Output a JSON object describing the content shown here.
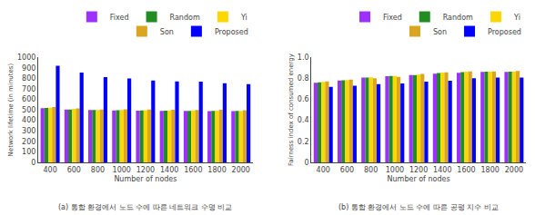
{
  "chart_data": [
    {
      "type": "bar",
      "title": "(a) 통합 환경에서 노드 수에 따른 네트워크 수명 비교",
      "xlabel": "Number of nodes",
      "ylabel": "Network lifetime (in minutes)",
      "categories": [
        400,
        600,
        800,
        1000,
        1200,
        1400,
        1600,
        1800,
        2000
      ],
      "series": [
        {
          "name": "Fixed",
          "color": "#9b30ff",
          "values": [
            515,
            502,
            499,
            494,
            493,
            491,
            490,
            487,
            487
          ]
        },
        {
          "name": "Random",
          "color": "#228B22",
          "values": [
            518,
            503,
            499,
            497,
            495,
            493,
            491,
            489,
            489
          ]
        },
        {
          "name": "Yi",
          "color": "#FFD700",
          "values": [
            520,
            510,
            499,
            499,
            497,
            495,
            494,
            493,
            489
          ]
        },
        {
          "name": "Son",
          "color": "#DAA520",
          "values": [
            527,
            513,
            503,
            505,
            502,
            501,
            499,
            500,
            496
          ]
        },
        {
          "name": "Proposed",
          "color": "#0000FF",
          "values": [
            920,
            855,
            812,
            798,
            780,
            770,
            768,
            753,
            745
          ]
        }
      ],
      "ylim": [
        0,
        1000
      ],
      "yticks": [
        0,
        100,
        200,
        300,
        400,
        500,
        600,
        700,
        800,
        900,
        1000
      ],
      "grid": false,
      "legend": "upper right"
    },
    {
      "type": "bar",
      "title": "(b) 통합 환경에서 노드 수에 따른 공평 지수 비교",
      "xlabel": "Number of nodes",
      "ylabel": "Fairness index of consumed energy",
      "categories": [
        400,
        600,
        800,
        1000,
        1200,
        1400,
        1600,
        1800,
        2000
      ],
      "series": [
        {
          "name": "Fixed",
          "color": "#9b30ff",
          "values": [
            0.757,
            0.78,
            0.808,
            0.82,
            0.832,
            0.845,
            0.852,
            0.862,
            0.862
          ]
        },
        {
          "name": "Random",
          "color": "#228B22",
          "values": [
            0.763,
            0.782,
            0.807,
            0.822,
            0.832,
            0.851,
            0.86,
            0.863,
            0.863
          ]
        },
        {
          "name": "Yi",
          "color": "#FFD700",
          "values": [
            0.766,
            0.784,
            0.809,
            0.822,
            0.836,
            0.855,
            0.864,
            0.863,
            0.864
          ]
        },
        {
          "name": "Son",
          "color": "#DAA520",
          "values": [
            0.77,
            0.789,
            0.802,
            0.814,
            0.841,
            0.857,
            0.865,
            0.866,
            0.869
          ]
        },
        {
          "name": "Proposed",
          "color": "#0000FF",
          "values": [
            0.718,
            0.73,
            0.745,
            0.752,
            0.768,
            0.778,
            0.8,
            0.808,
            0.808
          ]
        }
      ],
      "ylim": [
        0,
        1
      ],
      "yticks": [
        0,
        0.2,
        0.4,
        0.6,
        0.8,
        {
          "value": 1,
          "label": "1.0"
        }
      ],
      "grid": false,
      "legend": "upper right"
    }
  ]
}
